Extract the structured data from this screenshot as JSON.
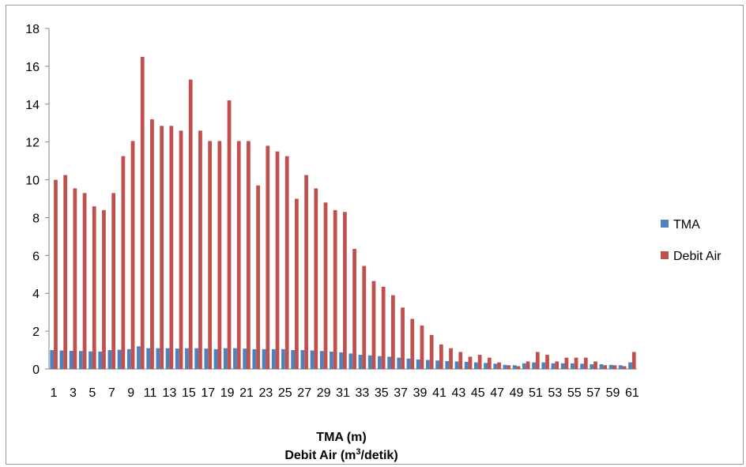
{
  "chart_data": {
    "type": "bar",
    "categories": [
      "1",
      "2",
      "3",
      "4",
      "5",
      "6",
      "7",
      "8",
      "9",
      "10",
      "11",
      "12",
      "13",
      "14",
      "15",
      "16",
      "17",
      "18",
      "19",
      "20",
      "21",
      "22",
      "23",
      "24",
      "25",
      "26",
      "27",
      "28",
      "29",
      "30",
      "31",
      "32",
      "33",
      "34",
      "35",
      "36",
      "37",
      "38",
      "39",
      "40",
      "41",
      "42",
      "43",
      "44",
      "45",
      "46",
      "47",
      "48",
      "49",
      "50",
      "51",
      "52",
      "53",
      "54",
      "55",
      "56",
      "57",
      "58",
      "59",
      "60",
      "61"
    ],
    "tick_labels": [
      "1",
      "3",
      "5",
      "7",
      "9",
      "11",
      "13",
      "15",
      "17",
      "19",
      "21",
      "23",
      "25",
      "27",
      "29",
      "31",
      "33",
      "35",
      "37",
      "39",
      "41",
      "43",
      "45",
      "47",
      "49",
      "51",
      "53",
      "55",
      "57",
      "59",
      "61"
    ],
    "series": [
      {
        "name": "TMA",
        "color": "#4F81BD",
        "values": [
          1.0,
          0.98,
          0.96,
          0.95,
          0.93,
          0.92,
          1.0,
          1.02,
          1.05,
          1.2,
          1.1,
          1.1,
          1.1,
          1.08,
          1.1,
          1.1,
          1.08,
          1.05,
          1.1,
          1.1,
          1.08,
          1.05,
          1.05,
          1.05,
          1.05,
          1.0,
          1.0,
          0.98,
          0.95,
          0.92,
          0.88,
          0.82,
          0.75,
          0.72,
          0.68,
          0.65,
          0.6,
          0.55,
          0.5,
          0.48,
          0.45,
          0.42,
          0.4,
          0.38,
          0.35,
          0.32,
          0.28,
          0.22,
          0.2,
          0.3,
          0.35,
          0.35,
          0.3,
          0.3,
          0.3,
          0.28,
          0.25,
          0.25,
          0.22,
          0.2,
          0.35
        ]
      },
      {
        "name": "Debit Air",
        "color": "#C0504D",
        "values": [
          10.0,
          10.25,
          9.55,
          9.3,
          8.6,
          8.4,
          9.3,
          11.25,
          12.05,
          16.5,
          13.2,
          12.85,
          12.85,
          12.6,
          15.3,
          12.6,
          12.05,
          12.05,
          14.2,
          12.05,
          12.05,
          9.7,
          11.8,
          11.5,
          11.25,
          9.0,
          10.25,
          9.55,
          8.8,
          8.4,
          8.3,
          6.35,
          5.45,
          4.65,
          4.35,
          3.9,
          3.25,
          2.65,
          2.3,
          1.8,
          1.3,
          1.1,
          0.9,
          0.65,
          0.75,
          0.6,
          0.35,
          0.2,
          0.15,
          0.4,
          0.9,
          0.75,
          0.4,
          0.6,
          0.6,
          0.6,
          0.4,
          0.2,
          0.2,
          0.15,
          0.9
        ]
      }
    ],
    "xlabel": "TMA (m)",
    "xlabel_line2": {
      "prefix": "Debit Air (m",
      "sup": "3",
      "suffix": "/detik)"
    },
    "ylim": [
      0,
      18
    ],
    "yticks": [
      "0",
      "2",
      "4",
      "6",
      "8",
      "10",
      "12",
      "14",
      "16",
      "18"
    ],
    "grid": false,
    "legend_position": "right"
  }
}
